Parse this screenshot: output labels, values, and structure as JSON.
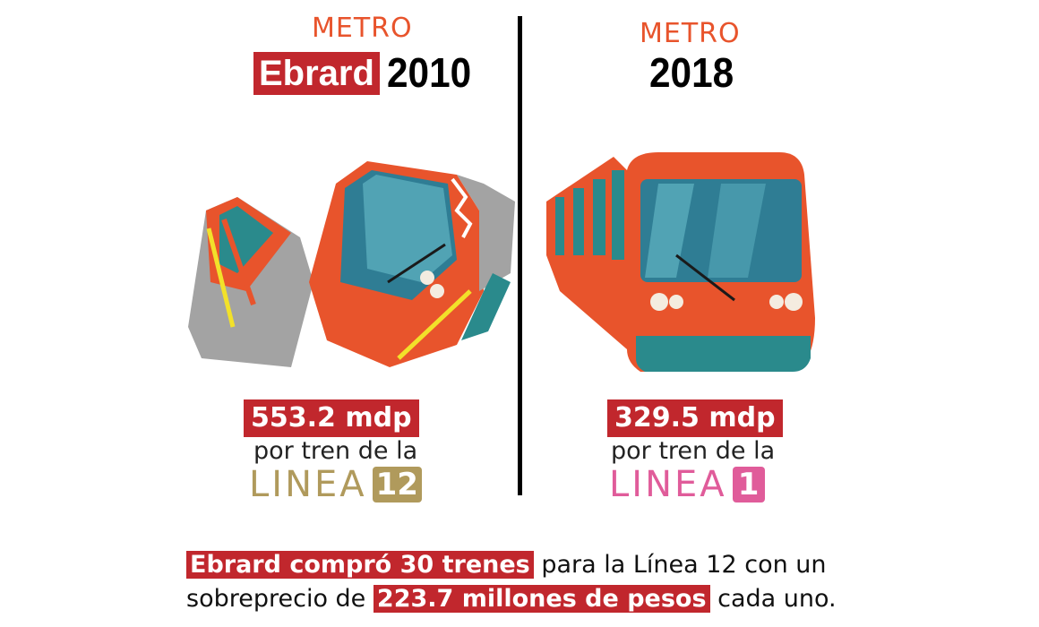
{
  "left": {
    "metro_label": "METRO",
    "name_label": "Ebrard",
    "year": "2010",
    "price": "553.2 mdp",
    "sub": "por tren de la",
    "linea_word": "LINEA",
    "linea_number": "12",
    "linea_color": "#b09a5c"
  },
  "right": {
    "metro_label": "METRO",
    "year": "2018",
    "price": "329.5 mdp",
    "sub": "por tren de la",
    "linea_word": "LINEA",
    "linea_number": "1",
    "linea_color": "#e05c9a"
  },
  "bottom": {
    "line1_hl": "Ebrard compró 30 trenes",
    "line1_rest": "para la Línea 12 con un",
    "line2_start": "sobreprecio de",
    "line2_hl": "223.7 millones de pesos",
    "line2_end": "cada uno."
  },
  "colors": {
    "highlight": "#c1272d",
    "train_orange": "#e8542c",
    "train_teal": "#2a8a8c",
    "metro_text": "#e8542c"
  },
  "illustrations": {
    "left": "broken-train-icon",
    "right": "metro-train-icon"
  }
}
